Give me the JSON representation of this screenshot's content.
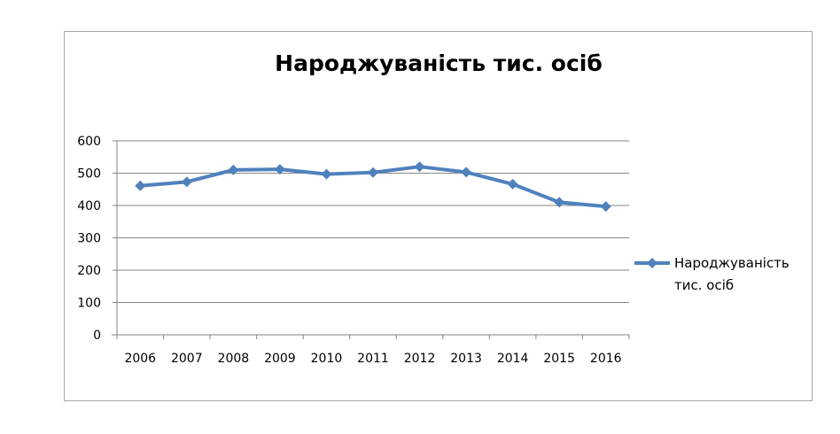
{
  "chart_data": {
    "type": "line",
    "title": "Народжуваність тис. осіб",
    "xlabel": "",
    "ylabel": "",
    "categories": [
      "2006",
      "2007",
      "2008",
      "2009",
      "2010",
      "2011",
      "2012",
      "2013",
      "2014",
      "2015",
      "2016"
    ],
    "series": [
      {
        "name": "Народжуваність тис. осіб",
        "values": [
          461,
          473,
          510,
          512,
          497,
          502,
          520,
          503,
          466,
          410,
          397
        ],
        "color": "#4f81bd",
        "marker": "diamond"
      }
    ],
    "ylim": [
      0,
      600
    ],
    "yticks": [
      0,
      100,
      200,
      300,
      400,
      500,
      600
    ],
    "grid": true,
    "legend": {
      "position": "right",
      "lines": [
        "Народжуваність",
        "тис. осіб"
      ]
    }
  }
}
